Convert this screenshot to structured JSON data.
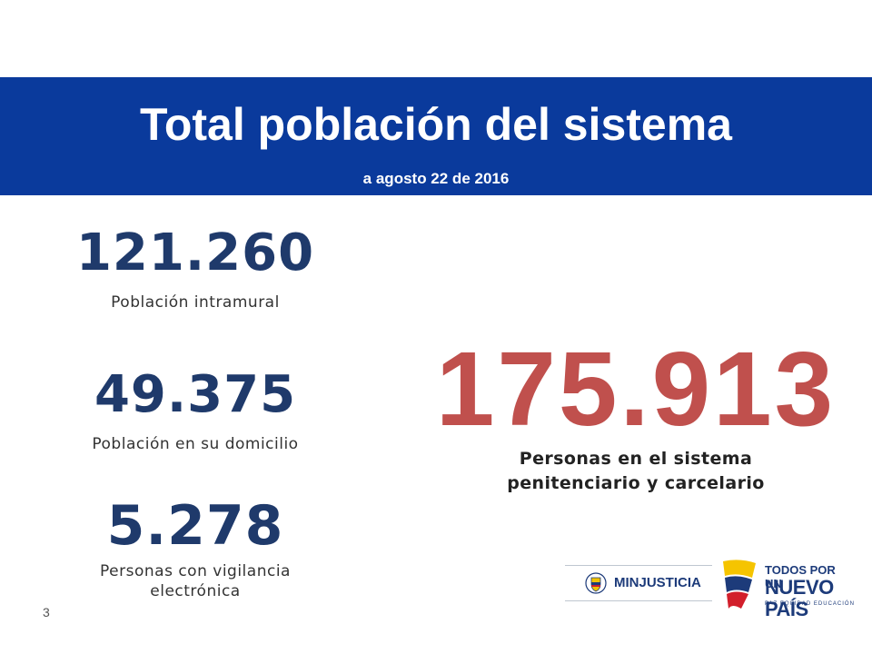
{
  "header": {
    "title": "Total población del sistema",
    "subtitle": "a agosto 22 de 2016",
    "background_color": "#0a3a9c"
  },
  "stats": [
    {
      "value": "121.260",
      "label": "Población intramural"
    },
    {
      "value": "49.375",
      "label": "Población en su domicilio"
    },
    {
      "value": "5.278",
      "label_line1": "Personas con vigilancia",
      "label_line2": "electrónica"
    }
  ],
  "total": {
    "value": "175.913",
    "label_line1": "Personas en el sistema",
    "label_line2": "penitenciario y carcelario",
    "color": "#c0504d"
  },
  "page_number": "3",
  "logos": {
    "minjusticia": {
      "text": "MINJUSTICIA",
      "icon": "colombia-shield-icon"
    },
    "todos": {
      "line1": "TODOS POR UN",
      "line2": "NUEVO PAÍS",
      "line3": "PAZ  EQUIDAD  EDUCACIÓN",
      "icon": "colombia-flag-ribbon-icon"
    }
  }
}
